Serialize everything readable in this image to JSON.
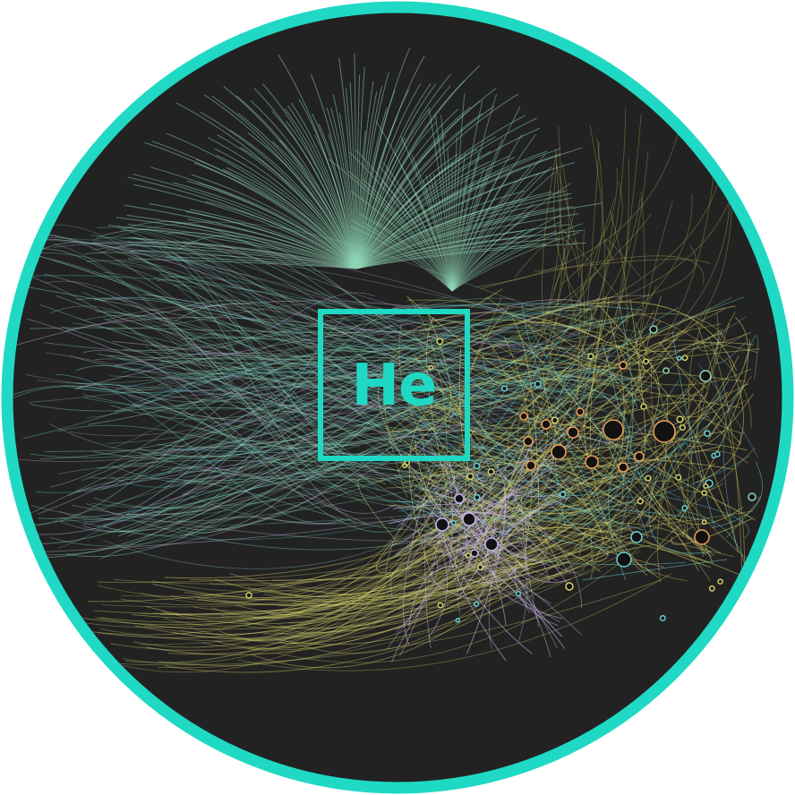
{
  "logo": {
    "symbol": "He"
  },
  "colors": {
    "frame_ring": "#1fd9c4",
    "background": "#222222",
    "logo_accent": "#1fd9c4",
    "edge_green": "#8fd8b8",
    "edge_yellow": "#d6d36a",
    "edge_lavender": "#c7b6e6",
    "edge_teal": "#69d3d6",
    "node_fill": "#111111",
    "node_orange": "#f2a05a"
  },
  "icons": {
    "network": "network-graph-icon"
  }
}
